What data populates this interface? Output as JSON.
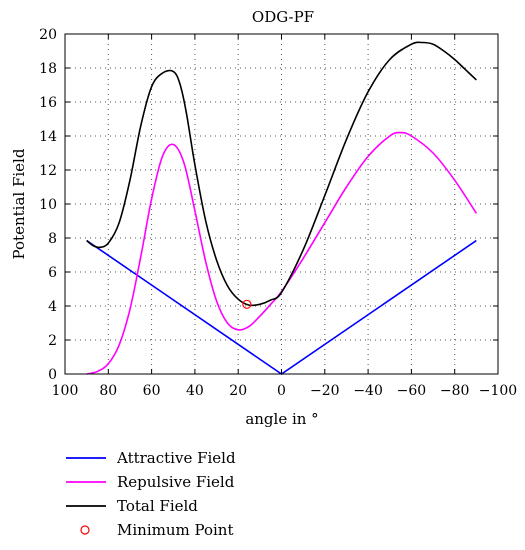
{
  "chart_data": {
    "type": "line",
    "title": "ODG-PF",
    "xlabel": "angle in °",
    "ylabel": "Potential Field",
    "xlim": [
      100,
      -100
    ],
    "ylim": [
      0,
      20
    ],
    "x_reversed": true,
    "grid": true,
    "legend_placement": "below",
    "x_ticks": [
      100,
      80,
      60,
      40,
      20,
      0,
      -20,
      -40,
      -60,
      -80,
      -100
    ],
    "x_tick_labels": [
      "100",
      "80",
      "60",
      "40",
      "20",
      "0",
      "−20",
      "−40",
      "−60",
      "−80",
      "−100"
    ],
    "y_ticks": [
      0,
      2,
      4,
      6,
      8,
      10,
      12,
      14,
      16,
      18,
      20
    ],
    "y_tick_labels": [
      "0",
      "2",
      "4",
      "6",
      "8",
      "10",
      "12",
      "14",
      "16",
      "18",
      "20"
    ],
    "series": [
      {
        "name": "Attractive Field",
        "color": "#0000ff",
        "x": [
          90,
          0,
          -90
        ],
        "values": [
          7.85,
          0,
          7.85
        ]
      },
      {
        "name": "Repulsive Field",
        "color": "#ff00ff",
        "x": [
          90,
          85,
          80,
          75,
          70,
          65,
          60,
          55,
          50,
          45,
          40,
          35,
          30,
          25,
          20,
          15,
          10,
          5,
          0,
          -10,
          -20,
          -30,
          -40,
          -50,
          -55,
          -60,
          -70,
          -80,
          -90
        ],
        "values": [
          0,
          0.15,
          0.6,
          1.7,
          3.8,
          6.9,
          10.3,
          12.8,
          13.5,
          12.4,
          9.6,
          6.6,
          4.3,
          3.0,
          2.6,
          2.8,
          3.4,
          4.1,
          4.85,
          6.8,
          8.9,
          11.0,
          12.8,
          14.0,
          14.2,
          14.0,
          13.0,
          11.4,
          9.45
        ]
      },
      {
        "name": "Total Field",
        "color": "#000000",
        "x": [
          90,
          87,
          84,
          80,
          75,
          70,
          65,
          60,
          55,
          50,
          47,
          44,
          40,
          35,
          30,
          25,
          20,
          15,
          10,
          5,
          0,
          -10,
          -20,
          -30,
          -40,
          -50,
          -60,
          -65,
          -70,
          -75,
          -80,
          -85,
          -90
        ],
        "values": [
          7.85,
          7.55,
          7.45,
          7.7,
          8.9,
          11.4,
          14.6,
          16.9,
          17.7,
          17.8,
          17.1,
          15.4,
          12.3,
          9.0,
          6.7,
          5.2,
          4.4,
          4.05,
          4.1,
          4.35,
          4.8,
          7.3,
          10.5,
          13.8,
          16.6,
          18.5,
          19.4,
          19.5,
          19.4,
          19.0,
          18.5,
          17.9,
          17.3
        ]
      },
      {
        "name": "Minimum Point",
        "color": "#ff0000",
        "marker": "open-circle",
        "x": [
          16
        ],
        "values": [
          4.1
        ]
      }
    ]
  }
}
